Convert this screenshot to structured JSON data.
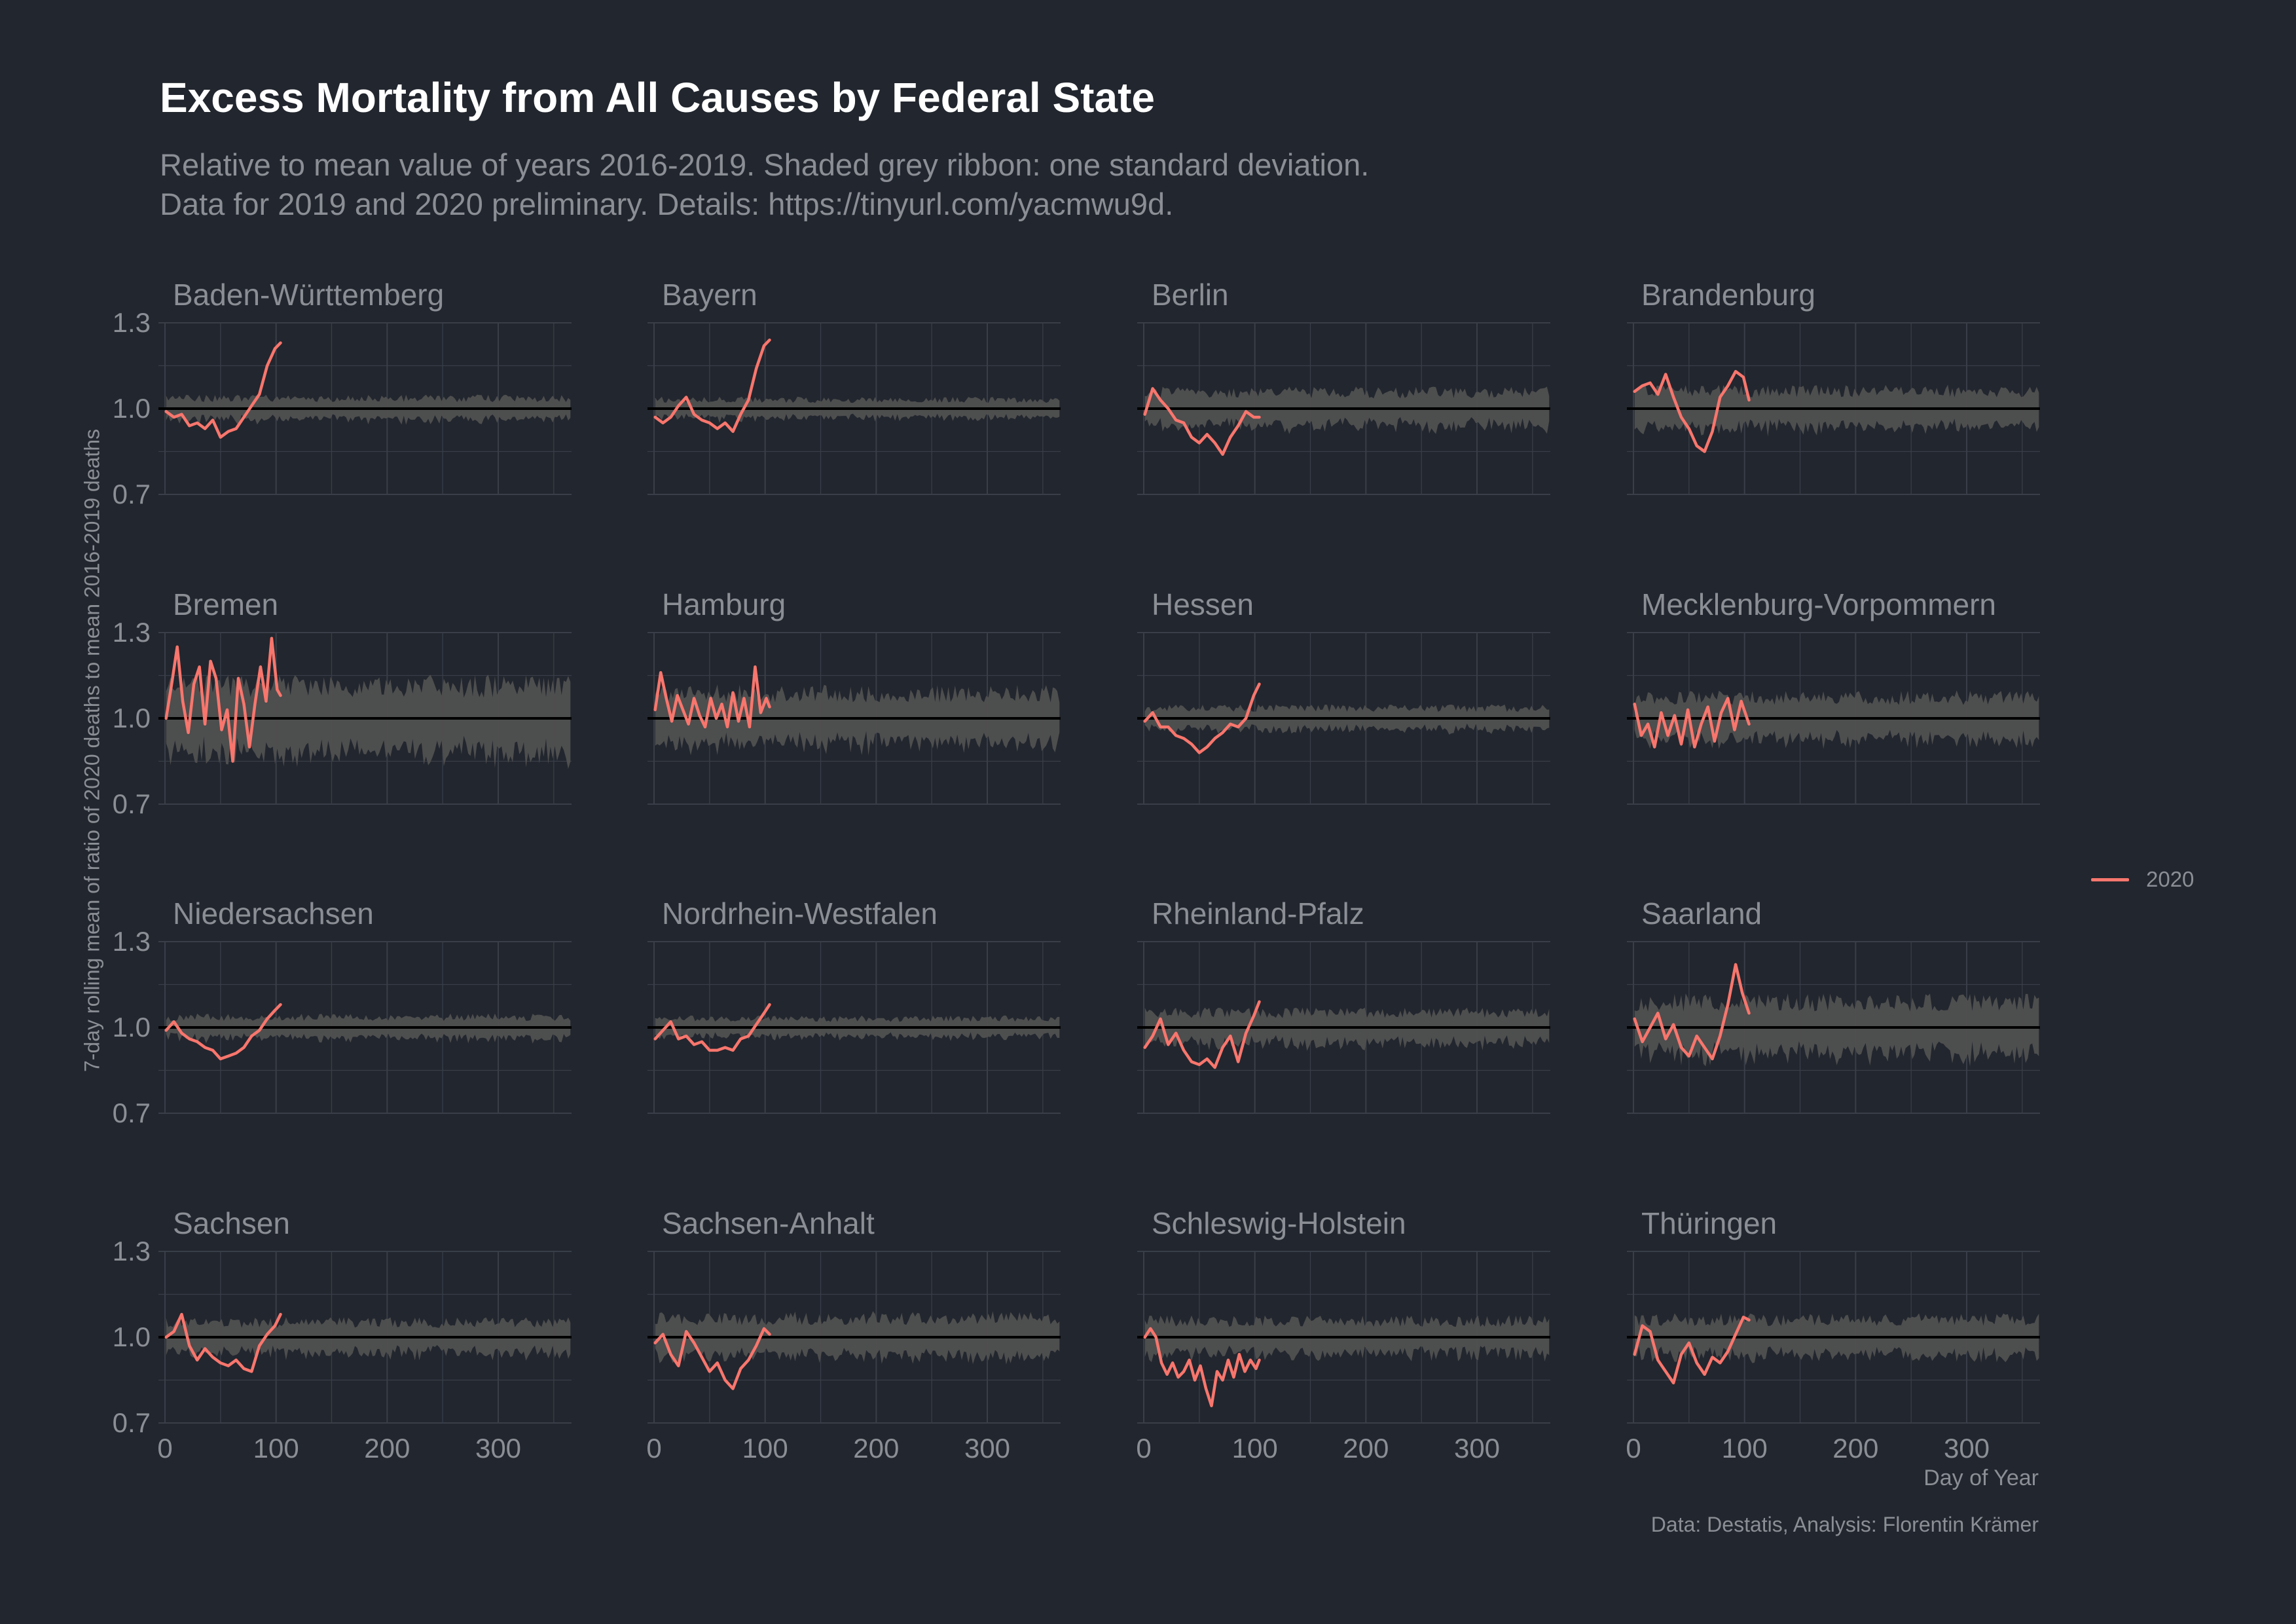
{
  "title": "Excess Mortality from All Causes by Federal State",
  "subtitle_lines": [
    "Relative to mean value of years 2016-2019. Shaded grey ribbon: one standard deviation.",
    "Data for 2019 and 2020 preliminary. Details: https://tinyurl.com/yacmwu9d."
  ],
  "caption": "Data: Destatis, Analysis: Florentin Krämer",
  "legend": {
    "label": "2020",
    "color": "#f8766d"
  },
  "colors": {
    "background": "#22262e",
    "ribbon": "#505050",
    "line_2020": "#f8766d",
    "reference": "#000000",
    "grid": "#393e48",
    "text": "#8b8e95"
  },
  "chart_data": {
    "type": "line",
    "facet": "state",
    "xlabel": "Day of Year",
    "ylabel": "7-day rolling mean of ratio of 2020 deaths to mean 2016-2019 deaths",
    "xlim": [
      0,
      366
    ],
    "ylim": [
      0.7,
      1.3
    ],
    "x_ticks": [
      0,
      100,
      200,
      300
    ],
    "y_ticks": [
      0.7,
      1.0,
      1.3
    ],
    "reference_line": 1.0,
    "ribbon_note": "one standard deviation band around 1.0, spanning days 1-366",
    "series_name": "2020",
    "panels": [
      {
        "state": "Baden-Württemberg",
        "ribbon_sd": 0.035,
        "x": [
          1,
          8,
          15,
          22,
          29,
          36,
          43,
          50,
          57,
          64,
          71,
          78,
          85,
          92,
          99,
          104
        ],
        "y": [
          0.99,
          0.97,
          0.98,
          0.94,
          0.95,
          0.93,
          0.96,
          0.9,
          0.92,
          0.93,
          0.97,
          1.01,
          1.05,
          1.15,
          1.21,
          1.23
        ]
      },
      {
        "state": "Bayern",
        "ribbon_sd": 0.03,
        "x": [
          1,
          8,
          15,
          22,
          29,
          36,
          43,
          50,
          57,
          64,
          71,
          78,
          85,
          92,
          99,
          104
        ],
        "y": [
          0.97,
          0.95,
          0.97,
          1.01,
          1.04,
          0.98,
          0.96,
          0.95,
          0.93,
          0.95,
          0.92,
          0.98,
          1.03,
          1.14,
          1.22,
          1.24
        ]
      },
      {
        "state": "Berlin",
        "ribbon_sd": 0.055,
        "x": [
          1,
          8,
          15,
          22,
          29,
          36,
          43,
          50,
          57,
          64,
          71,
          78,
          85,
          92,
          99,
          104
        ],
        "y": [
          0.98,
          1.07,
          1.03,
          1.0,
          0.96,
          0.95,
          0.9,
          0.88,
          0.91,
          0.88,
          0.84,
          0.9,
          0.94,
          0.99,
          0.97,
          0.97
        ]
      },
      {
        "state": "Brandenburg",
        "ribbon_sd": 0.06,
        "x": [
          1,
          8,
          15,
          22,
          29,
          36,
          43,
          50,
          57,
          64,
          71,
          78,
          85,
          92,
          99,
          104
        ],
        "y": [
          1.06,
          1.08,
          1.09,
          1.05,
          1.12,
          1.04,
          0.97,
          0.93,
          0.87,
          0.85,
          0.92,
          1.04,
          1.08,
          1.13,
          1.11,
          1.03
        ]
      },
      {
        "state": "Bremen",
        "ribbon_sd": 0.11,
        "x": [
          1,
          6,
          11,
          16,
          21,
          26,
          31,
          36,
          41,
          46,
          51,
          56,
          61,
          66,
          71,
          76,
          81,
          86,
          91,
          96,
          101,
          104
        ],
        "y": [
          1.0,
          1.12,
          1.25,
          1.06,
          0.95,
          1.12,
          1.18,
          0.98,
          1.2,
          1.14,
          0.96,
          1.03,
          0.85,
          1.14,
          1.05,
          0.9,
          1.05,
          1.18,
          1.06,
          1.28,
          1.1,
          1.08
        ]
      },
      {
        "state": "Hamburg",
        "ribbon_sd": 0.085,
        "x": [
          1,
          6,
          11,
          16,
          21,
          26,
          31,
          36,
          41,
          46,
          51,
          56,
          61,
          66,
          71,
          76,
          81,
          86,
          91,
          96,
          101,
          104
        ],
        "y": [
          1.03,
          1.16,
          1.07,
          0.99,
          1.08,
          1.03,
          0.98,
          1.07,
          1.01,
          0.97,
          1.07,
          1.0,
          1.05,
          0.97,
          1.09,
          0.99,
          1.07,
          0.97,
          1.18,
          1.02,
          1.07,
          1.04
        ]
      },
      {
        "state": "Hessen",
        "ribbon_sd": 0.035,
        "x": [
          1,
          8,
          15,
          22,
          29,
          36,
          43,
          50,
          57,
          64,
          71,
          78,
          85,
          92,
          99,
          104
        ],
        "y": [
          0.99,
          1.02,
          0.97,
          0.97,
          0.94,
          0.93,
          0.91,
          0.88,
          0.9,
          0.93,
          0.95,
          0.98,
          0.97,
          1.0,
          1.08,
          1.12
        ]
      },
      {
        "state": "Mecklenburg-Vorpommern",
        "ribbon_sd": 0.07,
        "x": [
          1,
          7,
          13,
          19,
          25,
          31,
          37,
          43,
          49,
          55,
          61,
          67,
          73,
          79,
          85,
          91,
          97,
          104
        ],
        "y": [
          1.05,
          0.94,
          0.98,
          0.9,
          1.02,
          0.94,
          1.01,
          0.91,
          1.03,
          0.9,
          0.98,
          1.04,
          0.92,
          1.02,
          1.07,
          0.96,
          1.06,
          0.98
        ]
      },
      {
        "state": "Niedersachsen",
        "ribbon_sd": 0.035,
        "x": [
          1,
          8,
          15,
          22,
          29,
          36,
          43,
          50,
          57,
          64,
          71,
          78,
          85,
          92,
          99,
          104
        ],
        "y": [
          0.99,
          1.02,
          0.98,
          0.96,
          0.95,
          0.93,
          0.92,
          0.89,
          0.9,
          0.91,
          0.93,
          0.97,
          0.99,
          1.03,
          1.06,
          1.08
        ]
      },
      {
        "state": "Nordrhein-Westfalen",
        "ribbon_sd": 0.03,
        "x": [
          1,
          8,
          15,
          22,
          29,
          36,
          43,
          50,
          57,
          64,
          71,
          78,
          85,
          92,
          99,
          104
        ],
        "y": [
          0.96,
          0.99,
          1.02,
          0.96,
          0.97,
          0.94,
          0.95,
          0.92,
          0.92,
          0.93,
          0.92,
          0.96,
          0.97,
          1.01,
          1.05,
          1.08
        ]
      },
      {
        "state": "Rheinland-Pfalz",
        "ribbon_sd": 0.05,
        "x": [
          1,
          8,
          15,
          22,
          29,
          36,
          43,
          50,
          57,
          64,
          71,
          78,
          85,
          92,
          99,
          104
        ],
        "y": [
          0.93,
          0.97,
          1.03,
          0.94,
          0.98,
          0.92,
          0.88,
          0.87,
          0.89,
          0.86,
          0.93,
          0.97,
          0.88,
          0.98,
          1.04,
          1.09
        ]
      },
      {
        "state": "Saarland",
        "ribbon_sd": 0.085,
        "x": [
          1,
          8,
          15,
          22,
          29,
          36,
          43,
          50,
          57,
          64,
          71,
          78,
          85,
          92,
          98,
          104
        ],
        "y": [
          1.03,
          0.95,
          1.0,
          1.05,
          0.96,
          1.01,
          0.93,
          0.9,
          0.97,
          0.93,
          0.89,
          0.97,
          1.08,
          1.22,
          1.12,
          1.05
        ]
      },
      {
        "state": "Sachsen",
        "ribbon_sd": 0.05,
        "x": [
          1,
          8,
          15,
          22,
          29,
          36,
          43,
          50,
          57,
          64,
          71,
          78,
          85,
          92,
          99,
          104
        ],
        "y": [
          1.0,
          1.02,
          1.08,
          0.97,
          0.92,
          0.96,
          0.93,
          0.91,
          0.9,
          0.92,
          0.89,
          0.88,
          0.97,
          1.01,
          1.04,
          1.08
        ]
      },
      {
        "state": "Sachsen-Anhalt",
        "ribbon_sd": 0.065,
        "x": [
          1,
          8,
          15,
          22,
          29,
          36,
          43,
          50,
          57,
          64,
          71,
          78,
          85,
          92,
          99,
          104
        ],
        "y": [
          0.98,
          1.01,
          0.94,
          0.9,
          1.02,
          0.98,
          0.93,
          0.88,
          0.91,
          0.85,
          0.82,
          0.89,
          0.92,
          0.97,
          1.03,
          1.01
        ]
      },
      {
        "state": "Schleswig-Holstein",
        "ribbon_sd": 0.055,
        "x": [
          1,
          6,
          11,
          16,
          21,
          26,
          31,
          36,
          41,
          46,
          51,
          56,
          61,
          66,
          71,
          76,
          81,
          86,
          91,
          96,
          101,
          104
        ],
        "y": [
          1.0,
          1.03,
          1.0,
          0.91,
          0.87,
          0.91,
          0.86,
          0.88,
          0.92,
          0.85,
          0.9,
          0.82,
          0.76,
          0.88,
          0.85,
          0.92,
          0.86,
          0.94,
          0.88,
          0.92,
          0.89,
          0.92
        ]
      },
      {
        "state": "Thüringen",
        "ribbon_sd": 0.06,
        "x": [
          1,
          8,
          15,
          22,
          29,
          36,
          43,
          50,
          57,
          64,
          71,
          78,
          85,
          92,
          99,
          104
        ],
        "y": [
          0.94,
          1.04,
          1.02,
          0.92,
          0.88,
          0.84,
          0.94,
          0.98,
          0.91,
          0.87,
          0.93,
          0.91,
          0.95,
          1.01,
          1.07,
          1.06
        ]
      }
    ]
  }
}
